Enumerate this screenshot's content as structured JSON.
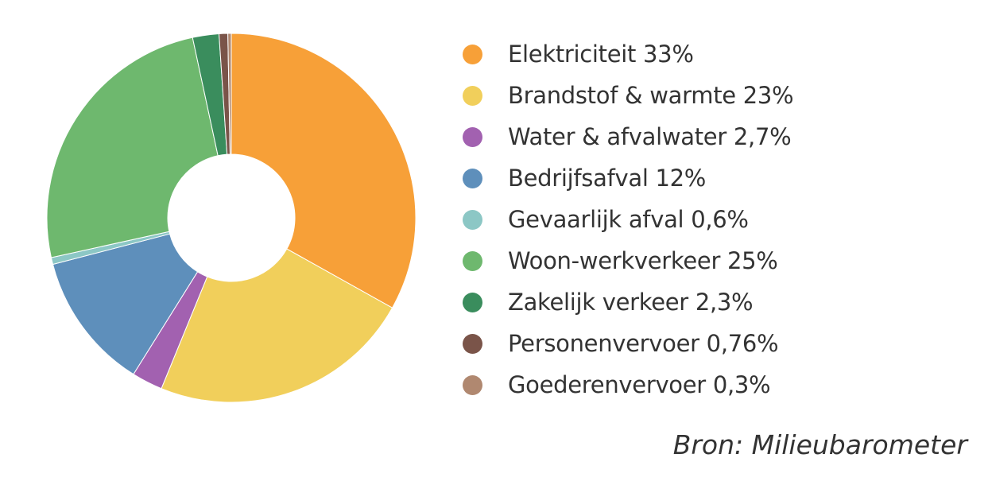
{
  "chart_data": {
    "type": "pie",
    "title": "",
    "categories": [
      "Elektriciteit",
      "Brandstof & warmte",
      "Water & afvalwater",
      "Bedrijfsafval",
      "Gevaarlijk afval",
      "Woon-werkverkeer",
      "Zakelijk verkeer",
      "Personenvervoer",
      "Goederenvervoer"
    ],
    "values": [
      33,
      23,
      2.7,
      12,
      0.6,
      25,
      2.3,
      0.76,
      0.3
    ],
    "value_labels": [
      "33%",
      "23%",
      "2,7%",
      "12%",
      "0,6%",
      "25%",
      "2,3%",
      "0,76%",
      "0,3%"
    ],
    "colors": [
      "#F7A038",
      "#F1CF5B",
      "#A261B0",
      "#5E8FBB",
      "#8CC7C5",
      "#6EB86E",
      "#3A8D5D",
      "#7A5449",
      "#B08870"
    ],
    "donut": true,
    "legend_position": "right",
    "start_angle": "top",
    "direction": "clockwise"
  },
  "source_note": "Bron: Milieubarometer"
}
